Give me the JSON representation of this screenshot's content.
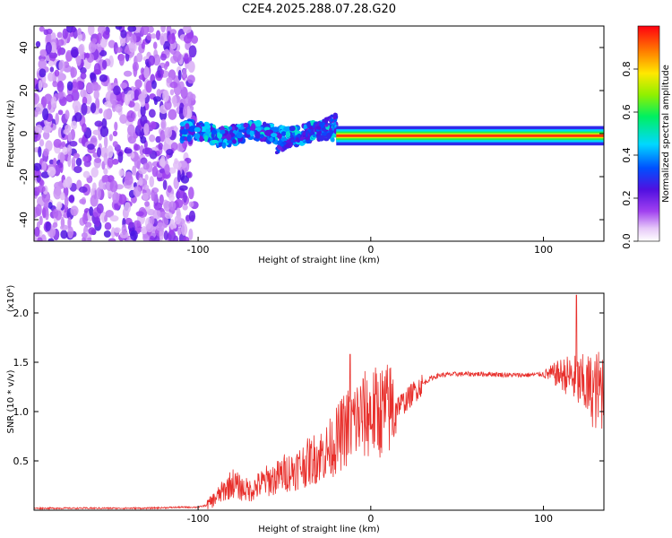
{
  "chart_data": [
    {
      "type": "heatmap",
      "title": "C2E4.2025.288.07.28.G20",
      "xlabel": "Height of straight line (km)",
      "ylabel": "Frequency (Hz)",
      "xlim": [
        -195,
        135
      ],
      "ylim": [
        -50,
        50
      ],
      "xticks": [
        -100,
        0,
        100
      ],
      "xtick_labels": [
        "-100",
        "0",
        "100"
      ],
      "yticks": [
        -40,
        -20,
        0,
        20,
        40
      ],
      "ytick_labels": [
        "-40",
        "-20",
        "0",
        "20",
        "40"
      ],
      "colorbar": {
        "label": "Normalized spectral amplitude",
        "range": [
          0,
          1
        ],
        "ticks": [
          0,
          0.2,
          0.4,
          0.6,
          0.8
        ],
        "tick_labels": [
          "0.0",
          "0.2",
          "0.4",
          "0.6",
          "0.8"
        ],
        "colormap": "rainbow (white-violet-blue-cyan-green-yellow-red)"
      },
      "features": [
        {
          "name": "broadband noise region",
          "x_range": [
            -195,
            -102
          ],
          "y_range": [
            -50,
            50
          ],
          "amplitude": 0.15
        },
        {
          "name": "onset band",
          "x_range": [
            -110,
            -20
          ],
          "y_center_approx": 0,
          "amplitude": 0.35
        },
        {
          "name": "steady carrier line",
          "x_range": [
            -20,
            135
          ],
          "y_center": -1,
          "amplitude": 0.95
        },
        {
          "name": "rising branch",
          "x_range": [
            -55,
            -20
          ],
          "y_range": [
            -8,
            8
          ],
          "amplitude": 0.3
        }
      ]
    },
    {
      "type": "line",
      "xlabel": "Height of straight line (km)",
      "ylabel": "SNR (10 * v/v)",
      "y_scale_note": "(x10⁴)",
      "xlim": [
        -195,
        135
      ],
      "ylim": [
        0,
        2.2
      ],
      "xticks": [
        -100,
        0,
        100
      ],
      "xtick_labels": [
        "-100",
        "0",
        "100"
      ],
      "yticks": [
        0.5,
        1.0,
        1.5,
        2.0
      ],
      "ytick_labels": [
        "0.5",
        "1.0",
        "1.5",
        "2.0"
      ],
      "color": "#e8302c",
      "series": [
        {
          "name": "SNR",
          "x": [
            -195,
            -160,
            -130,
            -110,
            -100,
            -95,
            -90,
            -85,
            -80,
            -75,
            -70,
            -65,
            -60,
            -55,
            -50,
            -45,
            -40,
            -35,
            -30,
            -25,
            -20,
            -15,
            -10,
            -5,
            0,
            5,
            10,
            15,
            20,
            25,
            30,
            35,
            40,
            50,
            60,
            70,
            80,
            90,
            100,
            110,
            115,
            120,
            125,
            130,
            135
          ],
          "values": [
            0.02,
            0.02,
            0.02,
            0.03,
            0.03,
            0.05,
            0.12,
            0.2,
            0.28,
            0.22,
            0.2,
            0.25,
            0.3,
            0.32,
            0.38,
            0.4,
            0.45,
            0.5,
            0.55,
            0.6,
            0.7,
            0.82,
            0.9,
            0.95,
            0.98,
            1.0,
            1.02,
            1.06,
            1.1,
            1.2,
            1.28,
            1.34,
            1.37,
            1.38,
            1.38,
            1.38,
            1.37,
            1.37,
            1.38,
            1.38,
            1.36,
            1.3,
            1.25,
            1.2,
            1.25
          ]
        }
      ],
      "annotations": [
        {
          "x": -12,
          "value": 1.58,
          "label": "spike"
        },
        {
          "x": 119,
          "value": 2.18,
          "label": "spike"
        }
      ]
    }
  ]
}
